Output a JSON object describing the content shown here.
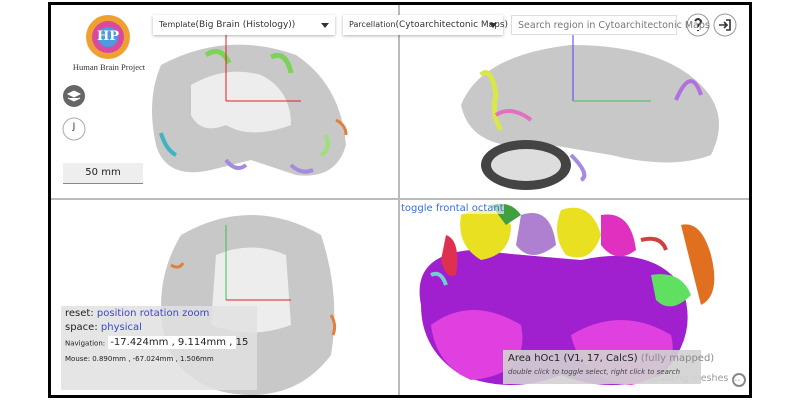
{
  "header": {
    "logo_mark": "HP",
    "logo_text": "Human Brain Project",
    "template_label": "Template",
    "template_value": "(Big Brain (Histology))",
    "parcellation_label": "Parcellation",
    "parcellation_value": "(Cytoarchitectonic Maps)",
    "search_placeholder": "Search region in Cytoarchitectonic Maps"
  },
  "sidebar": {
    "user_initial": "J",
    "scale_bar": "50 mm"
  },
  "viewer": {
    "toggle_octant": "toggle frontal octant",
    "loading": "Loading meshes ..."
  },
  "status_panel": {
    "reset_label": "reset:",
    "reset_links": [
      "position",
      "rotation",
      "zoom"
    ],
    "space_label": "space:",
    "space_value": "physical",
    "navigation_label": "Navigation:",
    "navigation_value": "-17.424mm , 9.114mm , 15",
    "mouse": "Mouse: 0.890mm , -67.024mm , 1.506mm"
  },
  "region_tooltip": {
    "name": "Area hOc1 (V1, 17, CalcS)",
    "status": "(fully mapped)",
    "hint": "double click to toggle select, right click to search"
  }
}
